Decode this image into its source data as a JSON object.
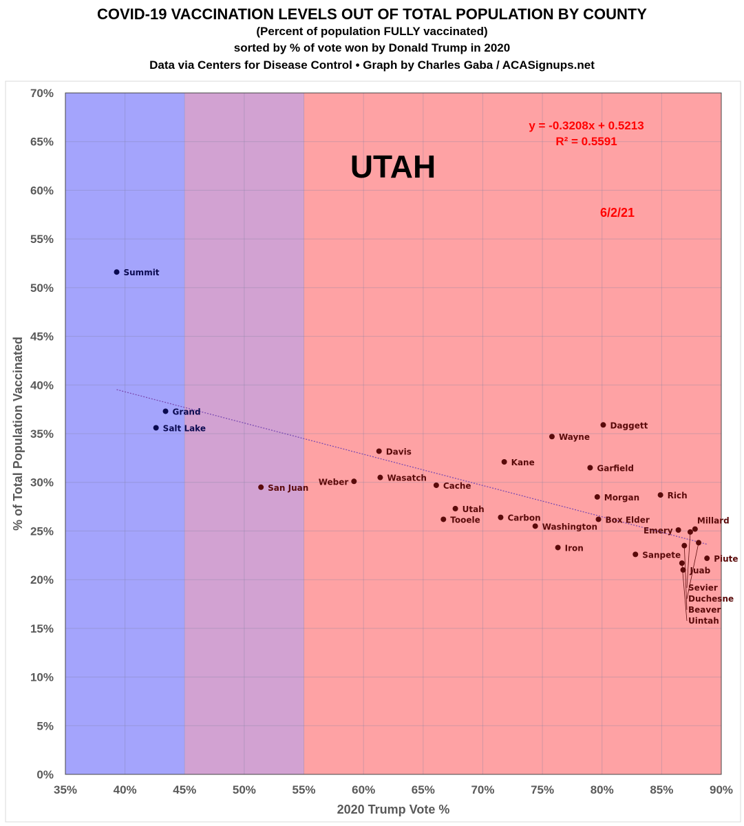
{
  "chart_data": {
    "type": "scatter",
    "title": "COVID-19 VACCINATION LEVELS OUT OF TOTAL POPULATION BY COUNTY",
    "subtitles": [
      "(Percent of population FULLY vaccinated)",
      "sorted by % of vote won by Donald Trump in 2020",
      "Data via Centers for Disease Control • Graph by Charles Gaba / ACASignups.net"
    ],
    "xlabel": "2020 Trump Vote %",
    "ylabel": "% of Total Population Vaccinated",
    "xlim": [
      35,
      90
    ],
    "ylim": [
      0,
      70
    ],
    "xticks": [
      "35%",
      "40%",
      "45%",
      "50%",
      "55%",
      "60%",
      "65%",
      "70%",
      "75%",
      "80%",
      "85%",
      "90%"
    ],
    "yticks": [
      "0%",
      "5%",
      "10%",
      "15%",
      "20%",
      "25%",
      "30%",
      "35%",
      "40%",
      "45%",
      "50%",
      "55%",
      "60%",
      "65%",
      "70%"
    ],
    "grid": true,
    "state_label": "UTAH",
    "date_label": "6/2/21",
    "trendline": {
      "equation": "y = -0.3208x + 0.5213",
      "r2": "R² = 0.5591",
      "slope": -0.3208,
      "intercept": 0.5213
    },
    "bands": [
      {
        "from": 35,
        "to": 45,
        "color": "#a4a4fc"
      },
      {
        "from": 45,
        "to": 55,
        "color": "#d2a2d2"
      },
      {
        "from": 55,
        "to": 90,
        "color": "#fea2a4"
      }
    ],
    "points": [
      {
        "name": "Summit",
        "x": 39.3,
        "y": 51.6
      },
      {
        "name": "Grand",
        "x": 43.4,
        "y": 37.3
      },
      {
        "name": "Salt Lake",
        "x": 42.6,
        "y": 35.6
      },
      {
        "name": "San Juan",
        "x": 51.4,
        "y": 29.5
      },
      {
        "name": "Weber",
        "x": 59.2,
        "y": 30.1
      },
      {
        "name": "Davis",
        "x": 61.3,
        "y": 33.2
      },
      {
        "name": "Wasatch",
        "x": 61.4,
        "y": 30.5
      },
      {
        "name": "Cache",
        "x": 66.1,
        "y": 29.7
      },
      {
        "name": "Utah",
        "x": 67.7,
        "y": 27.3
      },
      {
        "name": "Tooele",
        "x": 66.7,
        "y": 26.2
      },
      {
        "name": "Carbon",
        "x": 71.5,
        "y": 26.4
      },
      {
        "name": "Kane",
        "x": 71.8,
        "y": 32.1
      },
      {
        "name": "Washington",
        "x": 74.4,
        "y": 25.5
      },
      {
        "name": "Wayne",
        "x": 75.8,
        "y": 34.7
      },
      {
        "name": "Iron",
        "x": 76.3,
        "y": 23.3
      },
      {
        "name": "Daggett",
        "x": 80.1,
        "y": 35.9
      },
      {
        "name": "Garfield",
        "x": 79.0,
        "y": 31.5
      },
      {
        "name": "Morgan",
        "x": 79.6,
        "y": 28.5
      },
      {
        "name": "Box Elder",
        "x": 79.7,
        "y": 26.2
      },
      {
        "name": "Rich",
        "x": 84.9,
        "y": 28.7
      },
      {
        "name": "Sanpete",
        "x": 82.8,
        "y": 22.6
      },
      {
        "name": "Emery",
        "x": 86.4,
        "y": 25.1
      },
      {
        "name": "Millard",
        "x": 87.8,
        "y": 25.2
      },
      {
        "name": "Sevier",
        "x": 87.4,
        "y": 24.9
      },
      {
        "name": "Duchesne",
        "x": 88.1,
        "y": 23.8
      },
      {
        "name": "Beaver",
        "x": 86.9,
        "y": 23.5
      },
      {
        "name": "Piute",
        "x": 88.8,
        "y": 22.2
      },
      {
        "name": "Uintah",
        "x": 86.7,
        "y": 21.7
      },
      {
        "name": "Juab",
        "x": 86.8,
        "y": 21.0
      }
    ]
  }
}
